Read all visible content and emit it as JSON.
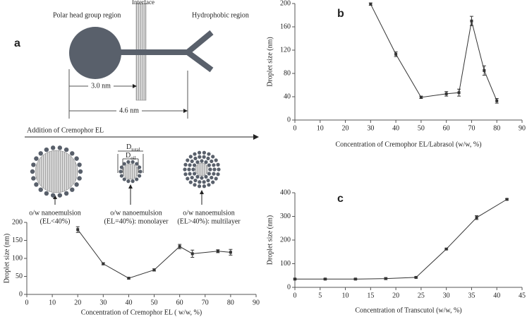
{
  "diagram": {
    "head_label": "Polar head group region",
    "interface_label": "Interface",
    "tail_label": "Hydrophobic region",
    "dim_short": "3.0 nm",
    "dim_long": "4.6 nm",
    "addition_label": "Addition of Cremophor EL",
    "d_total": {
      "main": "D",
      "sub": "total"
    },
    "d_oil": {
      "main": "D",
      "sub": "oil"
    },
    "droplets": [
      {
        "line1": "o/w nanoemulsion",
        "line2": "(EL<40%)"
      },
      {
        "line1": "o/w nanoemulsion",
        "line2": "(EL=40%): monolayer"
      },
      {
        "line1": "o/w nanoemulsion",
        "line2": "(EL>40%): multilayer"
      }
    ]
  },
  "chart_data": [
    {
      "type": "line",
      "panel": "a",
      "x": [
        20,
        30,
        40,
        50,
        60,
        65,
        75,
        80
      ],
      "values": [
        180,
        85,
        45,
        68,
        133,
        113,
        120,
        117
      ],
      "errors": [
        8,
        3,
        2,
        3,
        6,
        10,
        4,
        8
      ],
      "color": "#333333",
      "xlim": [
        0,
        90
      ],
      "xticks": [
        0,
        10,
        20,
        30,
        40,
        50,
        60,
        70,
        80,
        90
      ],
      "ylim": [
        0,
        200
      ],
      "yticks": [
        0,
        50,
        100,
        150,
        200
      ],
      "xlabel": "Concentration of Cremophor EL ( w/w, %)",
      "ylabel": "Droplet size (nm)"
    },
    {
      "type": "line",
      "panel": "b",
      "x": [
        30,
        40,
        50,
        60,
        65,
        70,
        75,
        80
      ],
      "values": [
        199,
        113,
        39,
        45,
        47,
        170,
        85,
        33
      ],
      "errors": [
        2,
        4,
        2,
        4,
        6,
        8,
        8,
        4
      ],
      "color": "#333333",
      "xlim": [
        0,
        90
      ],
      "xticks": [
        0,
        10,
        20,
        30,
        40,
        50,
        60,
        70,
        80,
        90
      ],
      "ylim": [
        0,
        200
      ],
      "yticks": [
        0,
        40,
        80,
        120,
        160,
        200
      ],
      "xlabel": "Concentration of Cremophor EL/Labrasol (w/w, %)",
      "ylabel": "Droplet size (nm)"
    },
    {
      "type": "line",
      "panel": "c",
      "x": [
        0,
        6,
        12,
        18,
        24,
        30,
        36,
        42
      ],
      "values": [
        35,
        35,
        35,
        37,
        42,
        162,
        295,
        372
      ],
      "errors": [
        3,
        3,
        3,
        4,
        3,
        3,
        8,
        3
      ],
      "color": "#333333",
      "xlim": [
        0,
        45
      ],
      "xticks": [
        0,
        5,
        10,
        15,
        20,
        25,
        30,
        35,
        40,
        45
      ],
      "ylim": [
        0,
        400
      ],
      "yticks": [
        0,
        100,
        200,
        300,
        400
      ],
      "xlabel": "Concentration of Transcutol (w/w, %)",
      "ylabel": "Droplet size (nm)"
    }
  ]
}
